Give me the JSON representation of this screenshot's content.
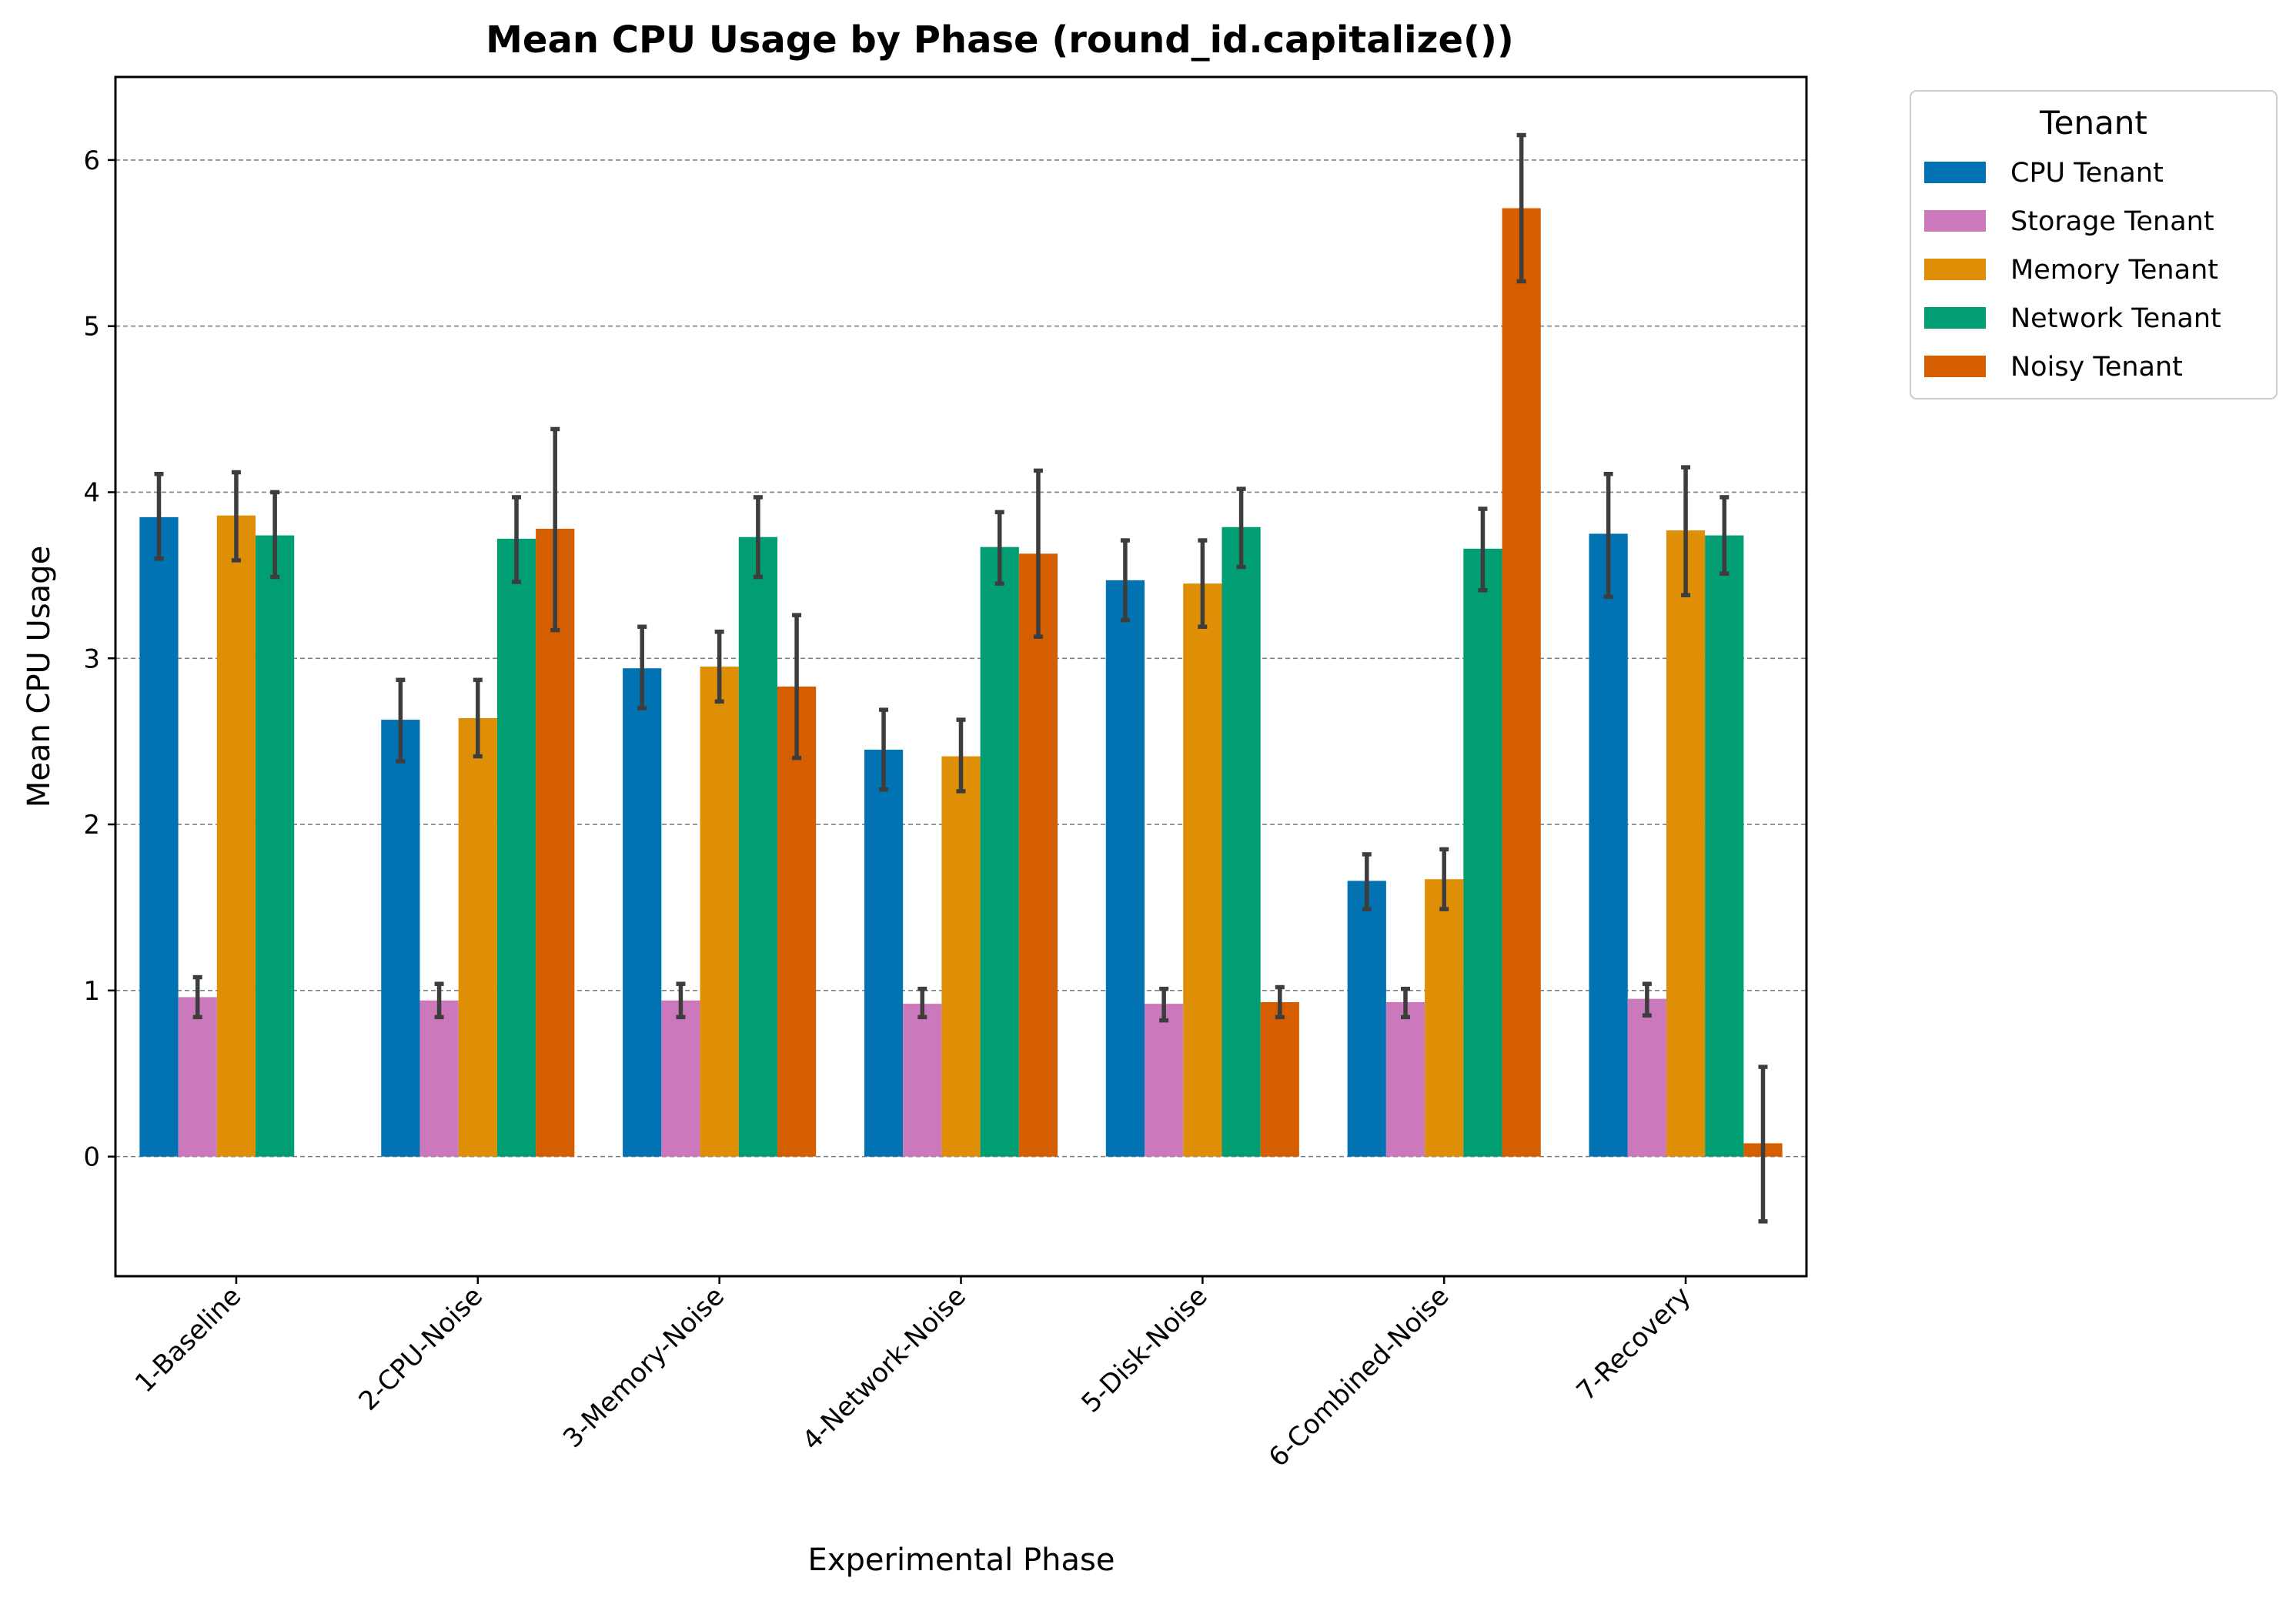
{
  "chart_data": {
    "type": "bar",
    "title": "Mean CPU Usage by Phase (round_id.capitalize())",
    "xlabel": "Experimental Phase",
    "ylabel": "Mean CPU Usage",
    "ylim": [
      -0.72,
      6.5
    ],
    "yticks": [
      0,
      1,
      2,
      3,
      4,
      5,
      6
    ],
    "grid": "horizontal, dashed",
    "categories": [
      "1-Baseline",
      "2-CPU-Noise",
      "3-Memory-Noise",
      "4-Network-Noise",
      "5-Disk-Noise",
      "6-Combined-Noise",
      "7-Recovery"
    ],
    "legend": {
      "title": "Tenant",
      "placement": "outside top-right"
    },
    "series": [
      {
        "name": "CPU Tenant",
        "color": "#0173b2",
        "values": [
          3.85,
          2.63,
          2.94,
          2.45,
          3.47,
          1.66,
          3.75
        ],
        "err_low": [
          3.6,
          2.38,
          2.7,
          2.21,
          3.23,
          1.49,
          3.37
        ],
        "err_high": [
          4.11,
          2.87,
          3.19,
          2.69,
          3.71,
          1.82,
          4.11
        ]
      },
      {
        "name": "Storage Tenant",
        "color": "#cc78bc",
        "values": [
          0.96,
          0.94,
          0.94,
          0.92,
          0.92,
          0.93,
          0.95
        ],
        "err_low": [
          0.84,
          0.84,
          0.84,
          0.84,
          0.82,
          0.84,
          0.85
        ],
        "err_high": [
          1.08,
          1.04,
          1.04,
          1.01,
          1.01,
          1.01,
          1.04
        ]
      },
      {
        "name": "Memory Tenant",
        "color": "#de8f05",
        "values": [
          3.86,
          2.64,
          2.95,
          2.41,
          3.45,
          1.67,
          3.77
        ],
        "err_low": [
          3.59,
          2.41,
          2.74,
          2.2,
          3.19,
          1.49,
          3.38
        ],
        "err_high": [
          4.12,
          2.87,
          3.16,
          2.63,
          3.71,
          1.85,
          4.15
        ]
      },
      {
        "name": "Network Tenant",
        "color": "#029e73",
        "values": [
          3.74,
          3.72,
          3.73,
          3.67,
          3.79,
          3.66,
          3.74
        ],
        "err_low": [
          3.49,
          3.46,
          3.49,
          3.45,
          3.55,
          3.41,
          3.51
        ],
        "err_high": [
          4.0,
          3.97,
          3.97,
          3.88,
          4.02,
          3.9,
          3.97
        ]
      },
      {
        "name": "Noisy Tenant",
        "color": "#d55e00",
        "values": [
          null,
          3.78,
          2.83,
          3.63,
          0.93,
          5.71,
          0.08
        ],
        "err_low": [
          null,
          3.17,
          2.4,
          3.13,
          0.84,
          5.27,
          -0.39
        ],
        "err_high": [
          null,
          4.38,
          3.26,
          4.13,
          1.02,
          6.15,
          0.54
        ]
      }
    ]
  }
}
